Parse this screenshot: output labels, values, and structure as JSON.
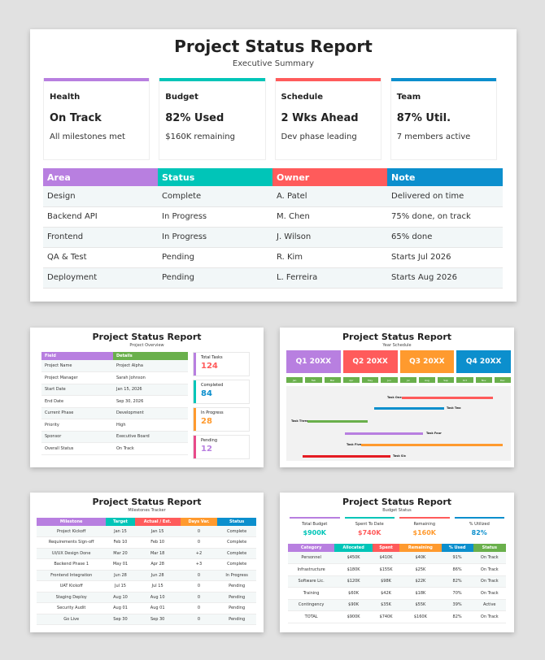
{
  "colors": {
    "purple": "#b87fe0",
    "teal": "#00c5b8",
    "red": "#ff5b5b",
    "blue": "#0c8fcd",
    "orange": "#ff9a2e",
    "green": "#6ab04c"
  },
  "main": {
    "title": "Project Status Report",
    "subtitle": "Executive Summary",
    "cards": [
      {
        "label": "Health",
        "value": "On Track",
        "detail": "All milestones met"
      },
      {
        "label": "Budget",
        "value": "82% Used",
        "detail": "$160K remaining"
      },
      {
        "label": "Schedule",
        "value": "2 Wks Ahead",
        "detail": "Dev phase leading"
      },
      {
        "label": "Team",
        "value": "87% Util.",
        "detail": "7 members active"
      }
    ],
    "table": {
      "headers": [
        "Area",
        "Status",
        "Owner",
        "Note"
      ],
      "rows": [
        [
          "Design",
          "Complete",
          "A. Patel",
          "Delivered on time"
        ],
        [
          "Backend API",
          "In Progress",
          "M. Chen",
          "75% done, on track"
        ],
        [
          "Frontend",
          "In Progress",
          "J. Wilson",
          "65% done"
        ],
        [
          "QA & Test",
          "Pending",
          "R. Kim",
          "Starts Jul 2026"
        ],
        [
          "Deployment",
          "Pending",
          "L. Ferreira",
          "Starts Aug 2026"
        ]
      ]
    }
  },
  "overview": {
    "title": "Project Status Report",
    "subtitle": "Project Overview",
    "table": {
      "headers": [
        "Field",
        "Details"
      ],
      "rows": [
        [
          "Project Name",
          "Project Alpha"
        ],
        [
          "Project Manager",
          "Sarah Johnson"
        ],
        [
          "Start Date",
          "Jan 15, 2026"
        ],
        [
          "End Date",
          "Sep 30, 2026"
        ],
        [
          "Current Phase",
          "Development"
        ],
        [
          "Priority",
          "High"
        ],
        [
          "Sponsor",
          "Executive Board"
        ],
        [
          "Overall Status",
          "On Track"
        ]
      ]
    },
    "stats": [
      {
        "label": "Total Tasks",
        "value": "124"
      },
      {
        "label": "Completed",
        "value": "84"
      },
      {
        "label": "In Progress",
        "value": "28"
      },
      {
        "label": "Pending",
        "value": "12"
      }
    ]
  },
  "schedule": {
    "title": "Project Status Report",
    "subtitle": "Year Schedule",
    "quarters": [
      "Q1 20XX",
      "Q2 20XX",
      "Q3 20XX",
      "Q4 20XX"
    ],
    "months": [
      "Jan",
      "Feb",
      "Mar",
      "Apr",
      "May",
      "Jun",
      "Jul",
      "Aug",
      "Sep",
      "Oct",
      "Nov",
      "Dec"
    ],
    "tasks": [
      "Task One",
      "Task Two",
      "Task Three",
      "Task Four",
      "Task Five",
      "Task Six"
    ]
  },
  "milestones": {
    "title": "Project Status Report",
    "subtitle": "Milestones Tracker",
    "headers": [
      "Milestone",
      "Target",
      "Actual / Est.",
      "Days Var.",
      "Status"
    ],
    "rows": [
      [
        "Project Kickoff",
        "Jan 15",
        "Jan 15",
        "0",
        "Complete"
      ],
      [
        "Requirements Sign-off",
        "Feb 10",
        "Feb 10",
        "0",
        "Complete"
      ],
      [
        "UI/UX Design Done",
        "Mar 20",
        "Mar 18",
        "+2",
        "Complete"
      ],
      [
        "Backend Phase 1",
        "May 01",
        "Apr 28",
        "+3",
        "Complete"
      ],
      [
        "Frontend Integration",
        "Jun 28",
        "Jun 28",
        "0",
        "In Progress"
      ],
      [
        "UAT Kickoff",
        "Jul 15",
        "Jul 15",
        "0",
        "Pending"
      ],
      [
        "Staging Deploy",
        "Aug 10",
        "Aug 10",
        "0",
        "Pending"
      ],
      [
        "Security Audit",
        "Aug 01",
        "Aug 01",
        "0",
        "Pending"
      ],
      [
        "Go Live",
        "Sep 30",
        "Sep 30",
        "0",
        "Pending"
      ]
    ]
  },
  "budget": {
    "title": "Project Status Report",
    "subtitle": "Budget Status",
    "cards": [
      {
        "label": "Total Budget",
        "value": "$900K"
      },
      {
        "label": "Spent To Date",
        "value": "$740K"
      },
      {
        "label": "Remaining",
        "value": "$160K"
      },
      {
        "label": "% Utilized",
        "value": "82%"
      }
    ],
    "headers": [
      "Category",
      "Allocated",
      "Spent",
      "Remaining",
      "% Used",
      "Status"
    ],
    "rows": [
      [
        "Personnel",
        "$450K",
        "$410K",
        "$40K",
        "91%",
        "On Track"
      ],
      [
        "Infrastructure",
        "$180K",
        "$155K",
        "$25K",
        "86%",
        "On Track"
      ],
      [
        "Software Lic.",
        "$120K",
        "$98K",
        "$22K",
        "82%",
        "On Track"
      ],
      [
        "Training",
        "$60K",
        "$42K",
        "$18K",
        "70%",
        "On Track"
      ],
      [
        "Contingency",
        "$90K",
        "$35K",
        "$55K",
        "39%",
        "Active"
      ],
      [
        "TOTAL",
        "$900K",
        "$740K",
        "$160K",
        "82%",
        "On Track"
      ]
    ]
  }
}
